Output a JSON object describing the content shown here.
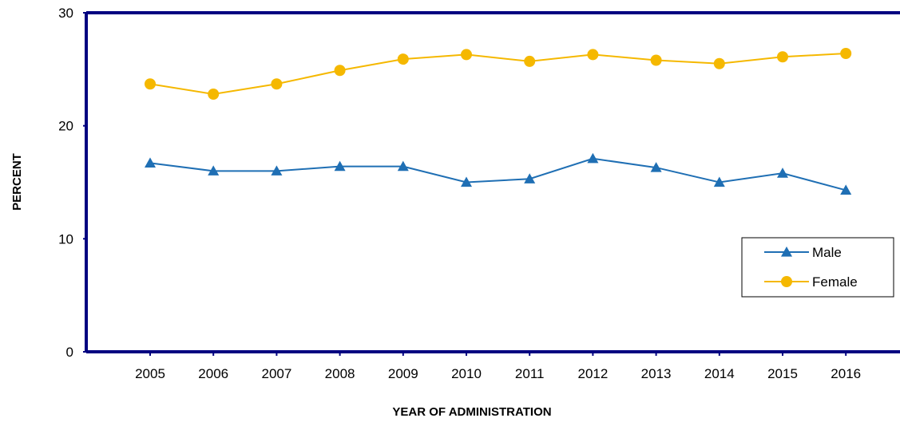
{
  "chart_data": {
    "type": "line",
    "xlabel": "YEAR OF ADMINISTRATION",
    "ylabel": "PERCENT",
    "ylim": [
      0,
      30
    ],
    "yticks": [
      0,
      10,
      20,
      30
    ],
    "categories": [
      "2005",
      "2006",
      "2007",
      "2008",
      "2009",
      "2010",
      "2011",
      "2012",
      "2013",
      "2014",
      "2015",
      "2016"
    ],
    "grid": false,
    "legend_position": "right",
    "series": [
      {
        "name": "Male",
        "marker": "triangle",
        "color": "#1F6FB4",
        "values": [
          16.7,
          16.0,
          16.0,
          16.4,
          16.4,
          15.0,
          15.3,
          17.1,
          16.3,
          15.0,
          15.8,
          14.3
        ]
      },
      {
        "name": "Female",
        "marker": "circle",
        "color": "#F5B800",
        "values": [
          23.7,
          22.8,
          23.7,
          24.9,
          25.9,
          26.3,
          25.7,
          26.3,
          25.8,
          25.5,
          26.1,
          26.4
        ]
      }
    ]
  }
}
